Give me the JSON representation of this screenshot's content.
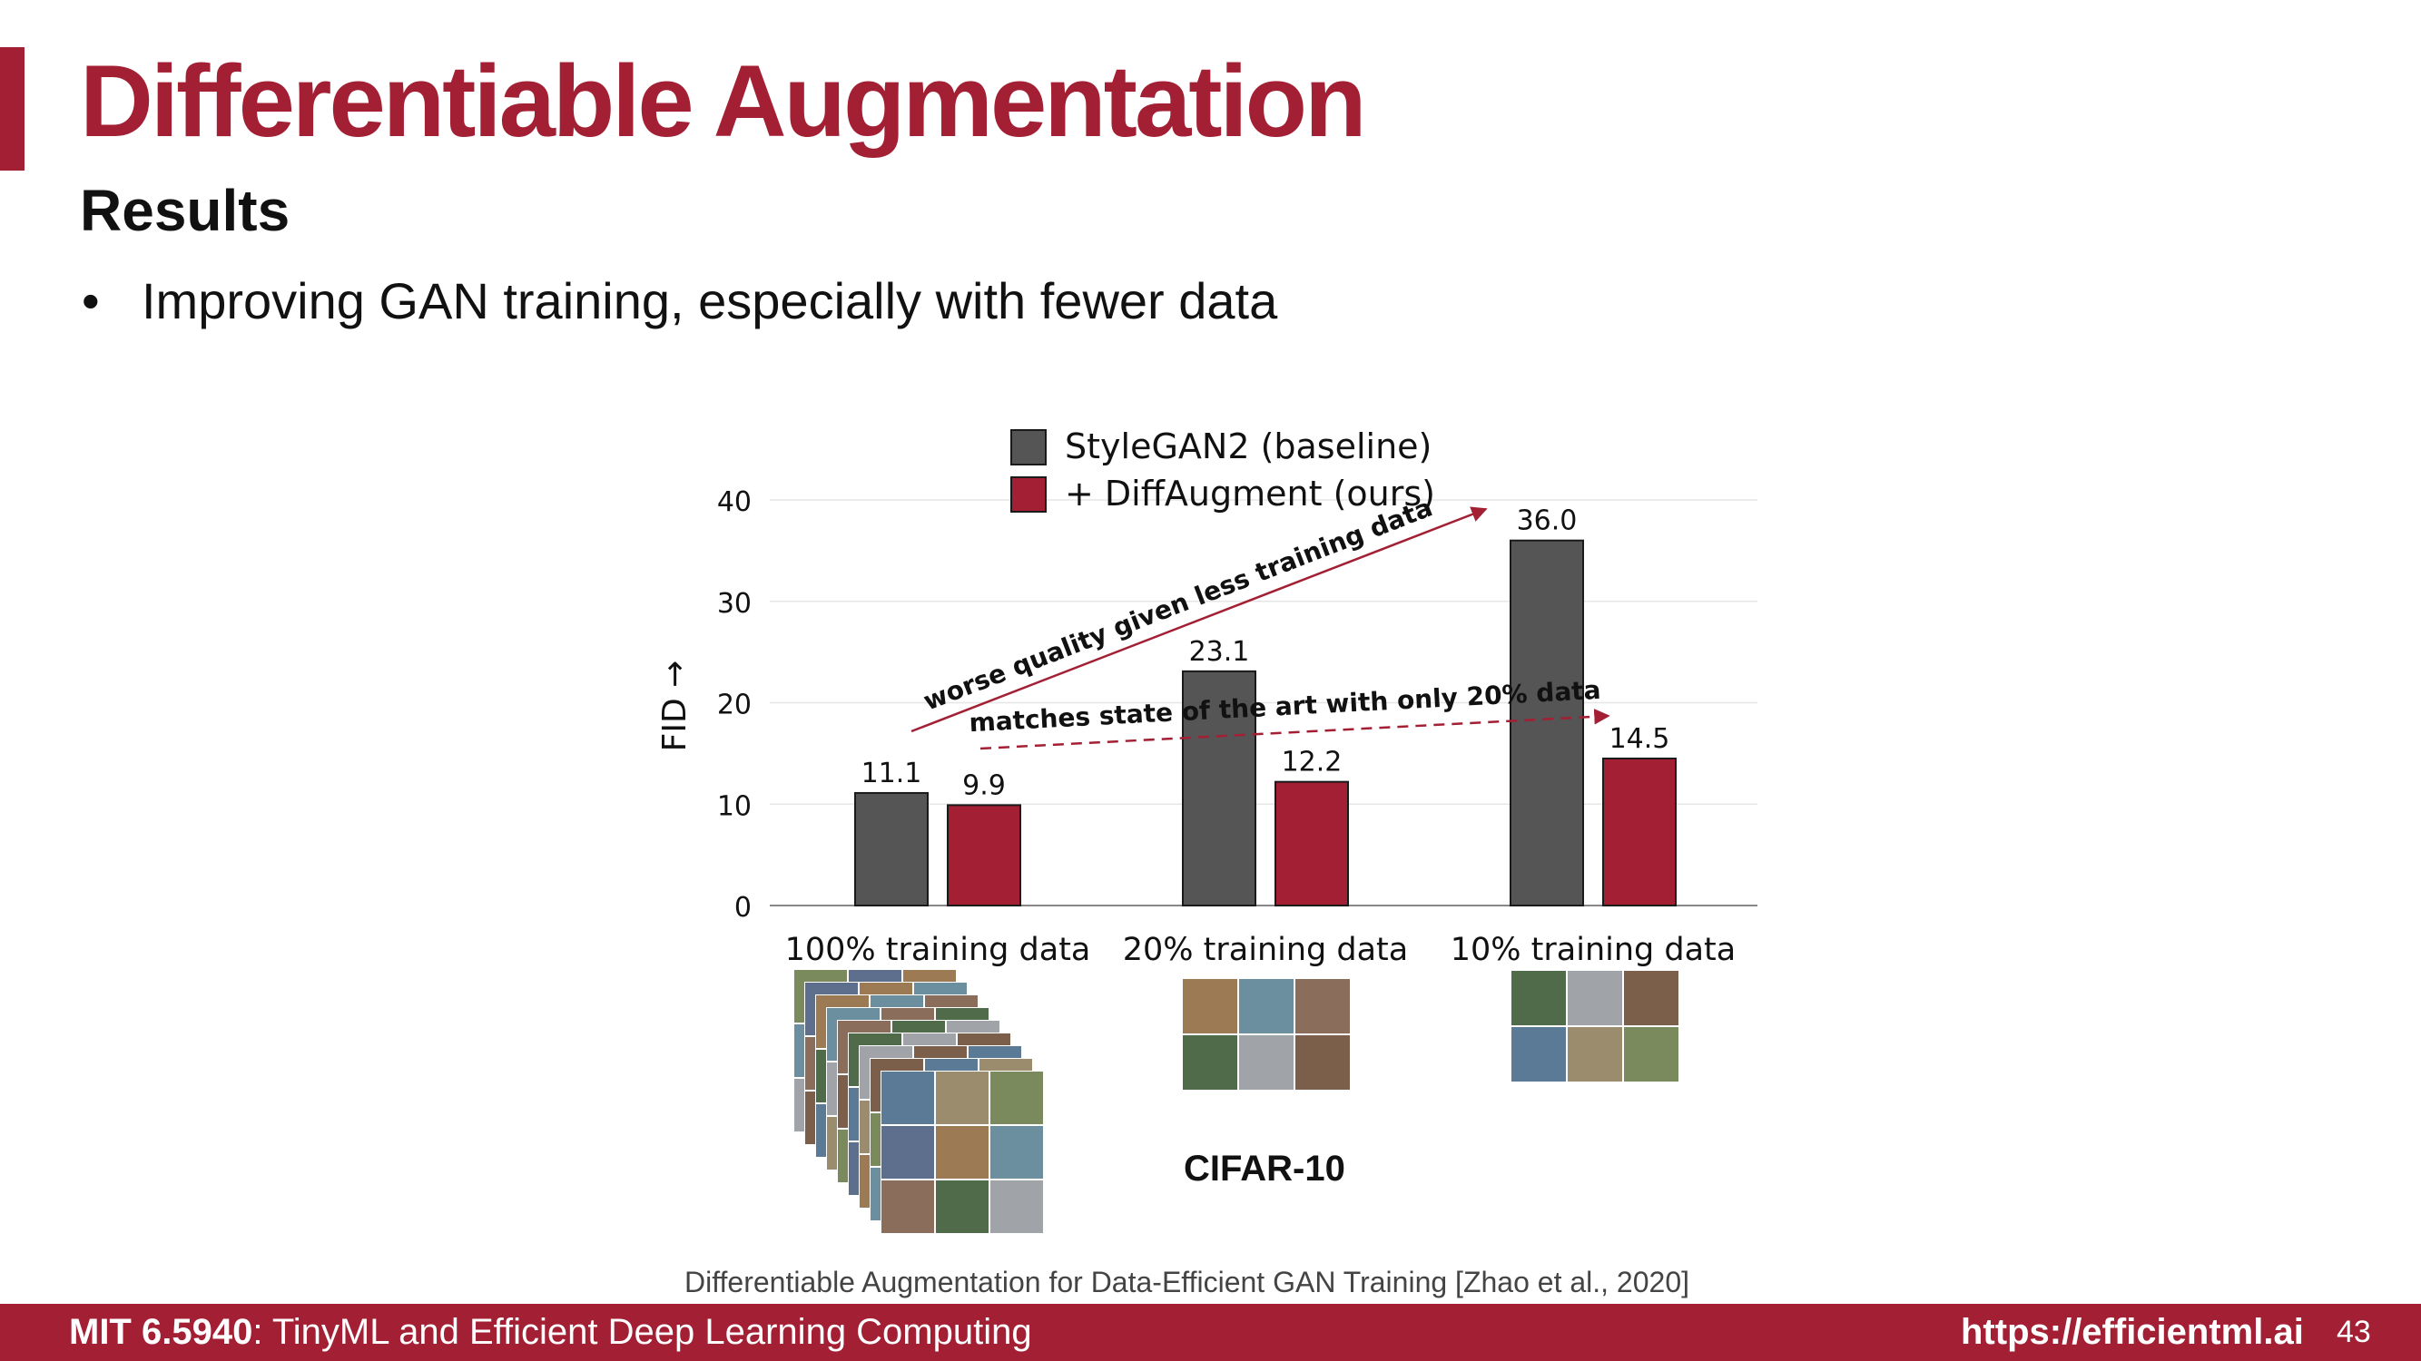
{
  "slide": {
    "title": "Differentiable Augmentation",
    "subtitle": "Results",
    "bullet": "Improving GAN training, especially with fewer data",
    "dataset_label": "CIFAR-10",
    "citation": "Differentiable Augmentation for Data-Efficient GAN Training [Zhao et al., 2020]",
    "accent_color": "#a31f34"
  },
  "footer": {
    "course_code": "MIT 6.5940",
    "course_title": ": TinyML and Efficient Deep Learning Computing",
    "url": "https://efficientml.ai",
    "page_number": "43"
  },
  "chart_data": {
    "type": "bar",
    "categories": [
      "100% training data",
      "20% training data",
      "10% training data"
    ],
    "series": [
      {
        "name": "StyleGAN2 (baseline)",
        "values": [
          11.1,
          23.1,
          36.0
        ],
        "labels": [
          "11.1",
          "23.1",
          "36.0"
        ],
        "color": "#555555"
      },
      {
        "name": "+ DiffAugment (ours)",
        "values": [
          9.9,
          12.2,
          14.5
        ],
        "labels": [
          "9.9",
          "12.2",
          "14.5"
        ],
        "color": "#a31f34"
      }
    ],
    "ylabel": "FID →",
    "yticks": [
      0,
      10,
      20,
      30,
      40
    ],
    "ylim": [
      0,
      40
    ],
    "grid": true,
    "legend": "top-center",
    "annotations": [
      {
        "text": "worse quality given less training data",
        "style": "solid-arrow",
        "color": "#a31f34"
      },
      {
        "text": "matches state of the art with only 20% data",
        "style": "dashed-arrow",
        "color": "#a31f34"
      }
    ]
  }
}
